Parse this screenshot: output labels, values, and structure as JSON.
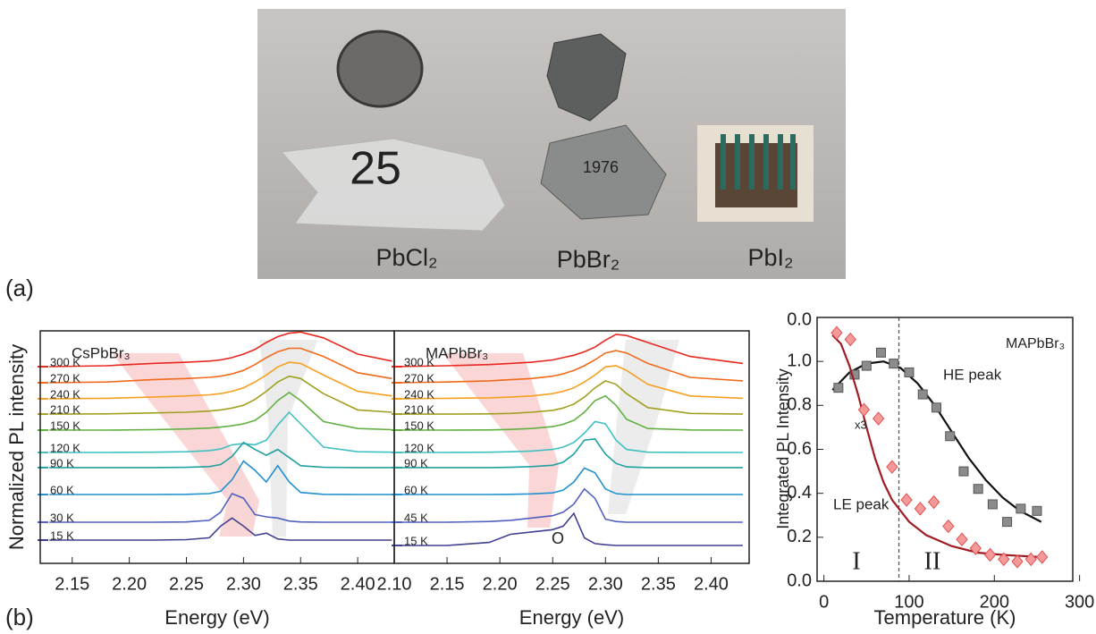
{
  "figure": {
    "panel_labels": [
      "(a)",
      "(b)"
    ],
    "photo_labels": [
      "PbCl₂",
      "PbBr₂",
      "PbI₂"
    ],
    "photo_texts": [
      "25",
      "1976"
    ]
  },
  "chart_data": [
    {
      "type": "line",
      "title": "CsPbBr₃",
      "xlabel": "Energy (eV)",
      "ylabel": "Normalized PL intensity",
      "x": [
        2.13,
        2.18,
        2.22,
        2.25,
        2.27,
        2.28,
        2.29,
        2.3,
        2.31,
        2.32,
        2.33,
        2.34,
        2.35,
        2.37,
        2.4,
        2.43
      ],
      "xlim": [
        2.122,
        2.432
      ],
      "xticks": [
        2.15,
        {
          "value": 2.2,
          "label": "2.20"
        },
        2.25,
        {
          "value": 2.3,
          "label": "2.30"
        },
        2.35,
        {
          "value": 2.4,
          "label": "2.40"
        }
      ],
      "ylim": [
        0,
        10
      ],
      "series": [
        {
          "name": "300 K",
          "color": "#e8281e",
          "values": [
            8.46,
            8.5,
            8.6,
            8.65,
            8.7,
            8.75,
            8.85,
            9.0,
            9.2,
            9.5,
            9.75,
            9.9,
            9.95,
            9.7,
            9.0,
            8.7
          ]
        },
        {
          "name": "270 K",
          "color": "#f06a1a",
          "values": [
            7.77,
            7.8,
            7.9,
            7.95,
            8.0,
            8.05,
            8.15,
            8.3,
            8.55,
            8.85,
            9.1,
            9.25,
            9.25,
            8.9,
            8.2,
            7.95
          ]
        },
        {
          "name": "240 K",
          "color": "#f5a020",
          "values": [
            7.08,
            7.1,
            7.15,
            7.2,
            7.25,
            7.3,
            7.4,
            7.55,
            7.8,
            8.1,
            8.45,
            8.65,
            8.6,
            8.1,
            7.4,
            7.2
          ]
        },
        {
          "name": "210 K",
          "color": "#a0a020",
          "values": [
            6.42,
            6.43,
            6.47,
            6.5,
            6.55,
            6.6,
            6.68,
            6.8,
            7.05,
            7.4,
            7.8,
            8.05,
            7.95,
            7.3,
            6.6,
            6.5
          ]
        },
        {
          "name": "150 K",
          "color": "#60b040",
          "values": [
            5.73,
            5.73,
            5.75,
            5.78,
            5.82,
            5.86,
            5.92,
            6.0,
            6.15,
            6.5,
            7.0,
            7.35,
            7.0,
            6.1,
            5.8,
            5.75
          ]
        },
        {
          "name": "120 K",
          "color": "#40c0c0",
          "values": [
            4.77,
            4.77,
            4.78,
            4.8,
            4.85,
            4.92,
            5.1,
            5.15,
            5.1,
            5.3,
            5.95,
            6.5,
            6.0,
            5.0,
            4.8,
            4.78
          ]
        },
        {
          "name": "90 K",
          "color": "#20a0a0",
          "values": [
            4.12,
            4.12,
            4.12,
            4.13,
            4.16,
            4.25,
            4.6,
            5.2,
            4.9,
            4.65,
            4.9,
            4.55,
            4.2,
            4.13,
            4.12,
            4.12
          ]
        },
        {
          "name": "60 K",
          "color": "#2090d0",
          "values": [
            2.96,
            2.96,
            2.96,
            2.97,
            3.0,
            3.1,
            3.6,
            4.4,
            4.0,
            3.5,
            4.2,
            3.5,
            3.05,
            2.97,
            2.96,
            2.96
          ]
        },
        {
          "name": "30 K",
          "color": "#5060c0",
          "values": [
            1.77,
            1.77,
            1.77,
            1.78,
            1.85,
            2.2,
            3.0,
            2.8,
            2.1,
            2.0,
            1.95,
            1.82,
            1.78,
            1.77,
            1.77,
            1.77
          ]
        },
        {
          "name": "15 K",
          "color": "#404090",
          "values": [
            1.0,
            1.0,
            1.0,
            1.02,
            1.1,
            1.6,
            1.95,
            1.6,
            1.2,
            1.3,
            1.05,
            1.0,
            1.0,
            1.0,
            1.0,
            1.0
          ]
        }
      ]
    },
    {
      "type": "line",
      "title": "MAPbBr₃",
      "xlabel": "Energy (eV)",
      "annotations": [
        "O"
      ],
      "x": [
        2.1,
        2.15,
        2.19,
        2.21,
        2.23,
        2.25,
        2.26,
        2.27,
        2.28,
        2.29,
        2.3,
        2.31,
        2.32,
        2.34,
        2.38,
        2.43
      ],
      "xlim": [
        2.1,
        2.436
      ],
      "xticks": [
        {
          "value": 2.1,
          "label": "2.10"
        },
        2.15,
        {
          "value": 2.2,
          "label": "2.20"
        },
        2.25,
        {
          "value": 2.3,
          "label": "2.30"
        },
        2.35,
        {
          "value": 2.4,
          "label": "2.40"
        }
      ],
      "ylim": [
        0,
        10
      ],
      "series": [
        {
          "name": "300 K",
          "color": "#e8281e",
          "values": [
            8.46,
            8.5,
            8.55,
            8.6,
            8.65,
            8.75,
            8.85,
            8.95,
            9.1,
            9.3,
            9.6,
            9.85,
            9.8,
            9.5,
            8.9,
            8.6
          ]
        },
        {
          "name": "270 K",
          "color": "#f06a1a",
          "values": [
            7.77,
            7.8,
            7.85,
            7.9,
            7.95,
            8.05,
            8.15,
            8.3,
            8.5,
            8.75,
            9.05,
            9.15,
            9.05,
            8.6,
            8.0,
            7.85
          ]
        },
        {
          "name": "240 K",
          "color": "#f5a020",
          "values": [
            7.08,
            7.1,
            7.12,
            7.15,
            7.2,
            7.3,
            7.4,
            7.55,
            7.8,
            8.1,
            8.45,
            8.5,
            8.3,
            7.7,
            7.2,
            7.1
          ]
        },
        {
          "name": "210 K",
          "color": "#a0a020",
          "values": [
            6.42,
            6.42,
            6.43,
            6.45,
            6.5,
            6.58,
            6.68,
            6.85,
            7.15,
            7.55,
            7.85,
            7.7,
            7.3,
            6.7,
            6.45,
            6.42
          ]
        },
        {
          "name": "150 K",
          "color": "#60b040",
          "values": [
            5.73,
            5.73,
            5.74,
            5.76,
            5.8,
            5.88,
            5.98,
            6.15,
            6.5,
            7.0,
            7.2,
            6.8,
            6.2,
            5.8,
            5.74,
            5.73
          ]
        },
        {
          "name": "120 K",
          "color": "#40c0c0",
          "values": [
            4.77,
            4.77,
            4.78,
            4.8,
            4.83,
            4.9,
            5.0,
            5.2,
            5.6,
            6.1,
            6.0,
            5.3,
            4.9,
            4.78,
            4.77,
            4.77
          ]
        },
        {
          "name": "90 K",
          "color": "#20a0a0",
          "values": [
            4.12,
            4.12,
            4.12,
            4.13,
            4.16,
            4.22,
            4.35,
            4.7,
            5.3,
            5.35,
            4.7,
            4.3,
            4.15,
            4.12,
            4.12,
            4.12
          ]
        },
        {
          "name": "60 K",
          "color": "#2090d0",
          "values": [
            2.96,
            2.96,
            2.96,
            2.97,
            2.99,
            3.03,
            3.15,
            3.5,
            4.1,
            3.9,
            3.2,
            3.0,
            2.96,
            2.96,
            2.96,
            2.96
          ]
        },
        {
          "name": "45 K",
          "color": "#5060c0",
          "values": [
            1.77,
            1.77,
            1.8,
            1.85,
            1.95,
            2.05,
            2.2,
            2.55,
            3.2,
            2.8,
            1.9,
            1.8,
            1.77,
            1.77,
            1.77,
            1.77
          ]
        },
        {
          "name": "15 K",
          "color": "#404090",
          "values": [
            0.77,
            0.77,
            0.9,
            1.25,
            1.35,
            1.45,
            1.6,
            2.15,
            1.1,
            0.85,
            0.8,
            0.77,
            0.77,
            0.77,
            0.77,
            0.77
          ]
        }
      ]
    },
    {
      "type": "scatter",
      "xlabel": "Temperature (K)",
      "ylabel": "Integrated PL Intensity",
      "top_label": "0.0",
      "xlim": [
        -8,
        292
      ],
      "xticks": [
        0,
        100,
        200,
        300
      ],
      "ylim": [
        0,
        1.2
      ],
      "yticks": [
        {
          "value": 0,
          "label": "0.0"
        },
        0.2,
        0.4,
        0.6,
        0.8,
        {
          "value": 1,
          "label": "1.0"
        }
      ],
      "vline": 88,
      "annotations": [
        "MAPbBr₃",
        "x3",
        "I",
        "II"
      ],
      "series": [
        {
          "name": "HE peak",
          "color": "#8c8c8c",
          "fit_color": "#111111",
          "marker": "square",
          "x": [
            17,
            36,
            50,
            67,
            82,
            100,
            116,
            132,
            148,
            164,
            181,
            198,
            215,
            231,
            250
          ],
          "values": [
            0.88,
            0.94,
            0.98,
            1.04,
            0.99,
            0.95,
            0.85,
            0.79,
            0.66,
            0.5,
            0.42,
            0.35,
            0.27,
            0.33,
            0.32
          ],
          "fit_x": [
            10,
            30,
            50,
            70,
            90,
            110,
            130,
            150,
            170,
            190,
            210,
            230,
            255
          ],
          "fit_values": [
            0.87,
            0.95,
            0.99,
            1.0,
            0.97,
            0.9,
            0.8,
            0.68,
            0.56,
            0.46,
            0.38,
            0.32,
            0.27
          ]
        },
        {
          "name": "LE peak",
          "color": "#f59a9a",
          "fit_color": "#a01c24",
          "marker": "diamond",
          "x": [
            15,
            31,
            47,
            64,
            80,
            97,
            113,
            129,
            146,
            162,
            178,
            195,
            211,
            227,
            243,
            256
          ],
          "values": [
            1.13,
            1.1,
            0.78,
            0.74,
            0.52,
            0.37,
            0.33,
            0.36,
            0.25,
            0.19,
            0.15,
            0.12,
            0.1,
            0.09,
            0.1,
            0.11
          ],
          "fit_x": [
            10,
            20,
            30,
            40,
            50,
            60,
            70,
            80,
            100,
            120,
            150,
            180,
            210,
            255
          ],
          "fit_values": [
            1.12,
            1.08,
            0.98,
            0.85,
            0.7,
            0.56,
            0.45,
            0.37,
            0.27,
            0.21,
            0.16,
            0.13,
            0.12,
            0.11
          ]
        }
      ]
    }
  ]
}
